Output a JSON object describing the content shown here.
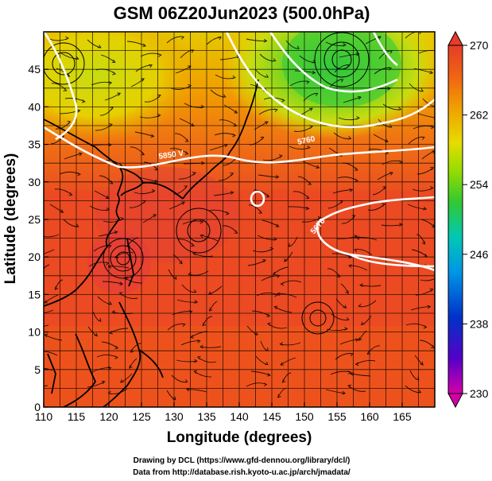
{
  "title": "GSM 06Z20Jun2023 (500.0hPa)",
  "x_axis": {
    "label": "Longitude (degrees)",
    "range": [
      110,
      170
    ],
    "ticks": [
      "110",
      "115",
      "120",
      "125",
      "130",
      "135",
      "140",
      "145",
      "150",
      "155",
      "160",
      "165"
    ]
  },
  "y_axis": {
    "label": "Latitude  (degrees)",
    "range": [
      0,
      50
    ],
    "ticks": [
      "0",
      "5",
      "10",
      "15",
      "20",
      "25",
      "30",
      "35",
      "40",
      "45"
    ]
  },
  "colorbar": {
    "ticks": [
      "270",
      "262",
      "254",
      "246",
      "238",
      "230"
    ],
    "range": [
      230,
      270
    ],
    "colors": [
      "#d400a8",
      "#5500c8",
      "#0032c8",
      "#0096e6",
      "#00c8b4",
      "#32c832",
      "#96dc00",
      "#e6dc00",
      "#f0a000",
      "#f06414",
      "#e63c28"
    ]
  },
  "contour_labels": [
    "5850 V",
    "5760",
    "5670"
  ],
  "credits": {
    "line1": "Drawing by DCL (https://www.gfd-dennou.org/library/dcl/)",
    "line2": "Data from http://database.rish.kyoto-u.ac.jp/arch/jmadata/"
  }
}
